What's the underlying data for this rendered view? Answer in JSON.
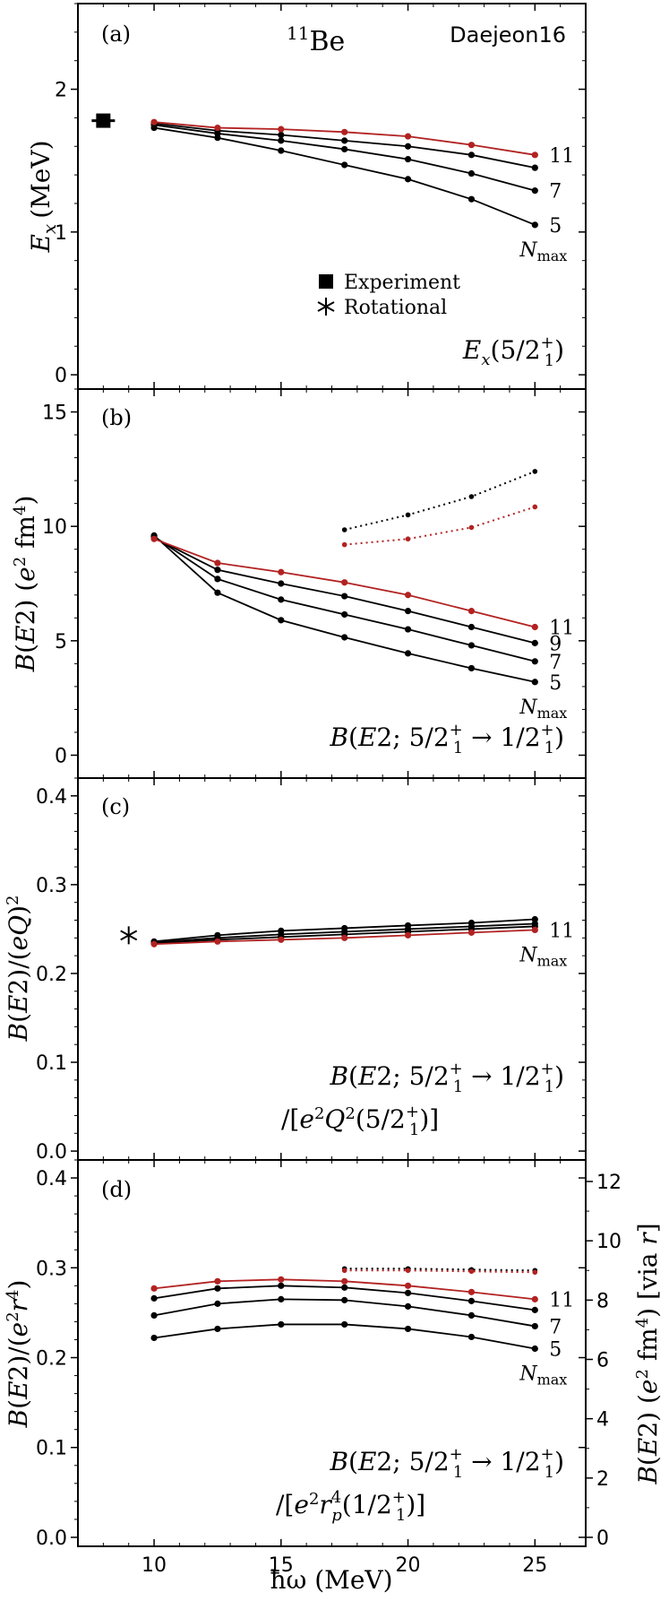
{
  "chart_data": [
    {
      "type": "line",
      "panel_label": "(a)",
      "nucleus": {
        "mass": "11",
        "element": "Be"
      },
      "interaction": "Daejeon16",
      "ylabel": "E",
      "ylabel_sub": "x",
      "ylabel_unit": "(MeV)",
      "ylim": [
        -0.1,
        2.6
      ],
      "yticks": [
        0,
        1,
        2
      ],
      "yticklabels": [
        "0",
        "1",
        "2"
      ],
      "caption": "E_x(5/2_1^+)",
      "x": [
        10,
        12.5,
        15,
        17.5,
        20,
        22.5,
        25
      ],
      "series": [
        {
          "name": "5",
          "color": "#000000",
          "style": "solid",
          "values": [
            1.73,
            1.66,
            1.57,
            1.47,
            1.37,
            1.23,
            1.05
          ]
        },
        {
          "name": "7",
          "color": "#000000",
          "style": "solid",
          "values": [
            1.75,
            1.69,
            1.64,
            1.58,
            1.51,
            1.41,
            1.29
          ]
        },
        {
          "name": "9",
          "color": "#000000",
          "style": "solid",
          "values": [
            1.76,
            1.71,
            1.68,
            1.64,
            1.6,
            1.54,
            1.45
          ]
        },
        {
          "name": "11",
          "color": "#b22222",
          "style": "solid",
          "values": [
            1.77,
            1.73,
            1.72,
            1.7,
            1.67,
            1.61,
            1.54
          ]
        }
      ],
      "series_labels": [
        "11",
        "7",
        "5"
      ],
      "nmax_label": "N",
      "nmax_sub": "max",
      "experiment": {
        "x": 8,
        "y": 1.78,
        "yerr": 0.04
      },
      "legend": [
        "Experiment",
        "Rotational"
      ]
    },
    {
      "type": "line",
      "panel_label": "(b)",
      "ylabel": "B(E2) (e² fm⁴)",
      "ylim": [
        -1,
        16
      ],
      "yticks": [
        0,
        5,
        10,
        15
      ],
      "yticklabels": [
        "0",
        "5",
        "10",
        "15"
      ],
      "caption": "B(E2; 5/2_1^+ → 1/2_1^+)",
      "x": [
        10,
        12.5,
        15,
        17.5,
        20,
        22.5,
        25
      ],
      "series": [
        {
          "name": "5",
          "color": "#000000",
          "style": "solid",
          "values": [
            9.6,
            7.1,
            5.9,
            5.15,
            4.45,
            3.8,
            3.2
          ]
        },
        {
          "name": "7",
          "color": "#000000",
          "style": "solid",
          "values": [
            9.55,
            7.7,
            6.8,
            6.15,
            5.5,
            4.8,
            4.1
          ]
        },
        {
          "name": "9",
          "color": "#000000",
          "style": "solid",
          "values": [
            9.5,
            8.1,
            7.5,
            6.95,
            6.3,
            5.6,
            4.9
          ]
        },
        {
          "name": "11",
          "color": "#b22222",
          "style": "solid",
          "values": [
            9.45,
            8.4,
            8.0,
            7.55,
            7.0,
            6.3,
            5.6
          ]
        },
        {
          "name": "",
          "color": "#000000",
          "style": "dotted",
          "x": [
            17.5,
            20,
            22.5,
            25
          ],
          "values": [
            9.85,
            10.5,
            11.3,
            12.4
          ]
        },
        {
          "name": "",
          "color": "#b22222",
          "style": "dotted",
          "x": [
            17.5,
            20,
            22.5,
            25
          ],
          "values": [
            9.2,
            9.45,
            9.95,
            10.85
          ]
        }
      ],
      "series_labels": [
        "11",
        "9",
        "7",
        "5"
      ],
      "nmax_label": "N",
      "nmax_sub": "max"
    },
    {
      "type": "line",
      "panel_label": "(c)",
      "ylabel": "B(E2)/(eQ)²",
      "ylim": [
        -0.01,
        0.42
      ],
      "yticks": [
        0.0,
        0.1,
        0.2,
        0.3,
        0.4
      ],
      "yticklabels": [
        "0.0",
        "0.1",
        "0.2",
        "0.3",
        "0.4"
      ],
      "caption_line1": "B(E2; 5/2_1^+ → 1/2_1^+)",
      "caption_line2": "/[e²Q²(5/2_1^+)]",
      "x": [
        10,
        12.5,
        15,
        17.5,
        20,
        22.5,
        25
      ],
      "series": [
        {
          "name": "5",
          "color": "#000000",
          "style": "solid",
          "values": [
            0.236,
            0.243,
            0.248,
            0.251,
            0.254,
            0.257,
            0.261
          ]
        },
        {
          "name": "7",
          "color": "#000000",
          "style": "solid",
          "values": [
            0.235,
            0.24,
            0.244,
            0.247,
            0.25,
            0.253,
            0.256
          ]
        },
        {
          "name": "9",
          "color": "#000000",
          "style": "solid",
          "values": [
            0.234,
            0.238,
            0.241,
            0.244,
            0.247,
            0.25,
            0.253
          ]
        },
        {
          "name": "11",
          "color": "#b22222",
          "style": "solid",
          "values": [
            0.233,
            0.236,
            0.238,
            0.24,
            0.243,
            0.246,
            0.249
          ]
        }
      ],
      "series_labels": [
        "11"
      ],
      "nmax_label": "N",
      "nmax_sub": "max",
      "rotational": {
        "x": 9,
        "y": 0.243
      }
    },
    {
      "type": "line",
      "panel_label": "(d)",
      "ylabel": "B(E2)/(e²r⁴)",
      "ylim": [
        -0.01,
        0.42
      ],
      "yticks": [
        0.0,
        0.1,
        0.2,
        0.3,
        0.4
      ],
      "yticklabels": [
        "0.0",
        "0.1",
        "0.2",
        "0.3",
        "0.4"
      ],
      "ylabel_right": "B(E2) (e² fm⁴)  [via r]",
      "yticks_right": [
        0,
        2,
        4,
        6,
        8,
        10,
        12
      ],
      "yticklabels_right": [
        "0",
        "2",
        "4",
        "6",
        "8",
        "10",
        "12"
      ],
      "right_axis_scale": 30.3,
      "caption_line1": "B(E2; 5/2_1^+ → 1/2_1^+)",
      "caption_line2": "/[e²r_p⁴(1/2_1^+)]",
      "x": [
        10,
        12.5,
        15,
        17.5,
        20,
        22.5,
        25
      ],
      "series": [
        {
          "name": "5",
          "color": "#000000",
          "style": "solid",
          "values": [
            0.222,
            0.232,
            0.237,
            0.237,
            0.232,
            0.223,
            0.21
          ]
        },
        {
          "name": "7",
          "color": "#000000",
          "style": "solid",
          "values": [
            0.247,
            0.26,
            0.265,
            0.264,
            0.257,
            0.247,
            0.235
          ]
        },
        {
          "name": "9",
          "color": "#000000",
          "style": "solid",
          "values": [
            0.266,
            0.277,
            0.28,
            0.278,
            0.272,
            0.263,
            0.253
          ]
        },
        {
          "name": "11",
          "color": "#b22222",
          "style": "solid",
          "values": [
            0.277,
            0.285,
            0.287,
            0.285,
            0.28,
            0.273,
            0.265
          ]
        },
        {
          "name": "",
          "color": "#000000",
          "style": "dotted",
          "x": [
            17.5,
            20,
            22.5,
            25
          ],
          "values": [
            0.299,
            0.299,
            0.298,
            0.297
          ]
        },
        {
          "name": "",
          "color": "#b22222",
          "style": "dotted",
          "x": [
            17.5,
            20,
            22.5,
            25
          ],
          "values": [
            0.297,
            0.297,
            0.296,
            0.295
          ]
        }
      ],
      "series_labels": [
        "11",
        "7",
        "5"
      ],
      "nmax_label": "N",
      "nmax_sub": "max"
    }
  ],
  "xaxis": {
    "label": "ħω (MeV)",
    "xlim": [
      7,
      27
    ],
    "ticks": [
      10,
      15,
      20,
      25
    ],
    "ticklabels": [
      "10",
      "15",
      "20",
      "25"
    ]
  }
}
